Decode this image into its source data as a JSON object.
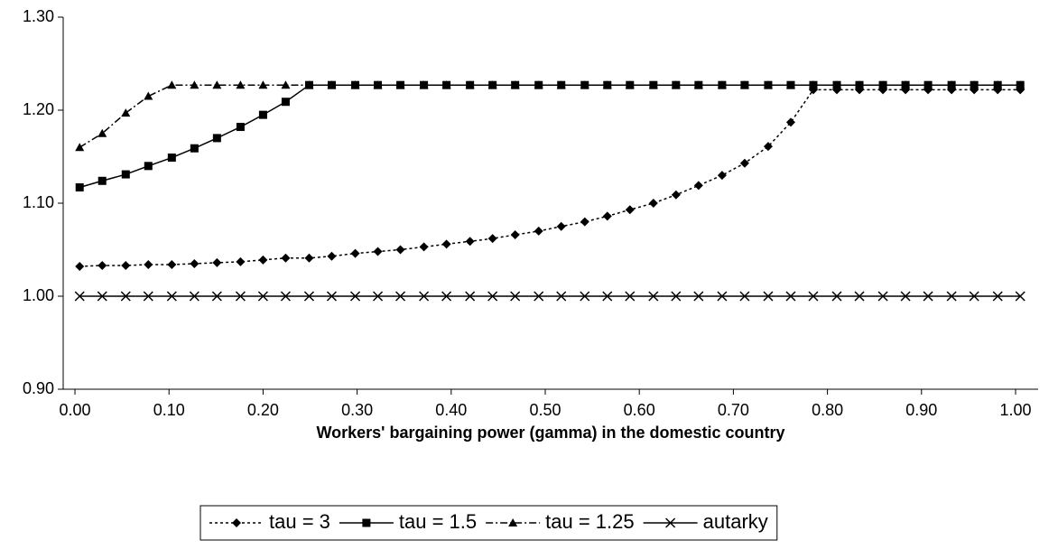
{
  "chart_data": {
    "type": "line",
    "x_label": "Workers' bargaining power (gamma) in the domestic country",
    "x": [
      0.005,
      0.029,
      0.054,
      0.078,
      0.103,
      0.127,
      0.151,
      0.176,
      0.2,
      0.224,
      0.249,
      0.273,
      0.298,
      0.322,
      0.346,
      0.371,
      0.395,
      0.42,
      0.444,
      0.468,
      0.493,
      0.517,
      0.542,
      0.566,
      0.59,
      0.615,
      0.639,
      0.663,
      0.688,
      0.712,
      0.737,
      0.761,
      0.785,
      0.81,
      0.834,
      0.859,
      0.883,
      0.907,
      0.932,
      0.956,
      0.981,
      1.005
    ],
    "series": [
      {
        "name": "tau = 3",
        "color": "#000000",
        "marker": "diamond",
        "line_style": "dotted",
        "values": [
          1.032,
          1.033,
          1.033,
          1.034,
          1.034,
          1.035,
          1.036,
          1.037,
          1.039,
          1.041,
          1.041,
          1.043,
          1.046,
          1.048,
          1.05,
          1.053,
          1.056,
          1.059,
          1.062,
          1.066,
          1.07,
          1.075,
          1.08,
          1.086,
          1.093,
          1.1,
          1.109,
          1.119,
          1.13,
          1.143,
          1.161,
          1.187,
          1.222,
          1.222,
          1.222,
          1.222,
          1.222,
          1.222,
          1.222,
          1.222,
          1.222,
          1.222
        ]
      },
      {
        "name": "tau = 1.5",
        "color": "#000000",
        "marker": "square",
        "line_style": "solid",
        "values": [
          1.117,
          1.124,
          1.131,
          1.14,
          1.149,
          1.159,
          1.17,
          1.182,
          1.195,
          1.209,
          1.227,
          1.227,
          1.227,
          1.227,
          1.227,
          1.227,
          1.227,
          1.227,
          1.227,
          1.227,
          1.227,
          1.227,
          1.227,
          1.227,
          1.227,
          1.227,
          1.227,
          1.227,
          1.227,
          1.227,
          1.227,
          1.227,
          1.227,
          1.227,
          1.227,
          1.227,
          1.227,
          1.227,
          1.227,
          1.227,
          1.227,
          1.227
        ]
      },
      {
        "name": "tau = 1.25",
        "color": "#000000",
        "marker": "triangle",
        "line_style": "dashdot",
        "values": [
          1.16,
          1.175,
          1.197,
          1.215,
          1.227,
          1.227,
          1.227,
          1.227,
          1.227,
          1.227,
          1.227,
          1.227,
          1.227,
          1.227,
          1.227,
          1.227,
          1.227,
          1.227,
          1.227,
          1.227,
          1.227,
          1.227,
          1.227,
          1.227,
          1.227,
          1.227,
          1.227,
          1.227,
          1.227,
          1.227,
          1.227,
          1.227,
          1.227,
          1.227,
          1.227,
          1.227,
          1.227,
          1.227,
          1.227,
          1.227,
          1.227,
          1.227
        ]
      },
      {
        "name": "autarky",
        "color": "#000000",
        "marker": "x",
        "line_style": "solid",
        "values": [
          1.0,
          1.0,
          1.0,
          1.0,
          1.0,
          1.0,
          1.0,
          1.0,
          1.0,
          1.0,
          1.0,
          1.0,
          1.0,
          1.0,
          1.0,
          1.0,
          1.0,
          1.0,
          1.0,
          1.0,
          1.0,
          1.0,
          1.0,
          1.0,
          1.0,
          1.0,
          1.0,
          1.0,
          1.0,
          1.0,
          1.0,
          1.0,
          1.0,
          1.0,
          1.0,
          1.0,
          1.0,
          1.0,
          1.0,
          1.0,
          1.0,
          1.0
        ]
      }
    ],
    "xlim": [
      -0.0125,
      1.024
    ],
    "xticks": [
      {
        "value": 0,
        "label": "0.00"
      },
      {
        "value": 0.1,
        "label": "0.10"
      },
      {
        "value": 0.2,
        "label": "0.20"
      },
      {
        "value": 0.3,
        "label": "0.30"
      },
      {
        "value": 0.4,
        "label": "0.40"
      },
      {
        "value": 0.5,
        "label": "0.50"
      },
      {
        "value": 0.6,
        "label": "0.60"
      },
      {
        "value": 0.7,
        "label": "0.70"
      },
      {
        "value": 0.8,
        "label": "0.80"
      },
      {
        "value": 0.9,
        "label": "0.90"
      },
      {
        "value": 1,
        "label": "1.00"
      }
    ],
    "ylim": [
      0.9,
      1.3
    ],
    "yticks": [
      {
        "value": 0.9,
        "label": "0.90"
      },
      {
        "value": 1.0,
        "label": "1.00"
      },
      {
        "value": 1.1,
        "label": "1.10"
      },
      {
        "value": 1.2,
        "label": "1.20"
      },
      {
        "value": 1.3,
        "label": "1.30"
      }
    ],
    "grid": false,
    "legend": "bottom"
  }
}
